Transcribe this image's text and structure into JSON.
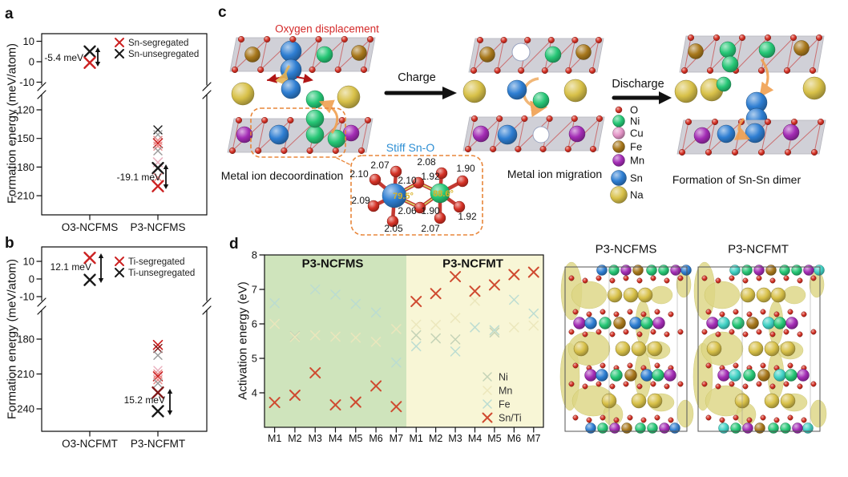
{
  "chart_data": [
    {
      "type": "scatter",
      "panel_label": "a",
      "ylabel": "Formation energy (meV/atom)",
      "categories": [
        "O3-NCFMS",
        "P3-NCFMS"
      ],
      "yticks_top": [
        "10",
        "0",
        "-10"
      ],
      "yticks_bottom": [
        "-120",
        "-150",
        "-180",
        "-210"
      ],
      "axis_break": true,
      "legend": [
        {
          "label": "Sn-segregated",
          "color": "red"
        },
        {
          "label": "Sn-unsegregated",
          "color": "black"
        }
      ],
      "annotations": [
        {
          "text": "-5.4 meV"
        },
        {
          "text": "-19.1 meV"
        }
      ],
      "points": [
        {
          "cat": 0,
          "v": 5,
          "c": "black",
          "s": 13,
          "w": 2.4
        },
        {
          "cat": 0,
          "v": -0.5,
          "c": "red",
          "s": 13,
          "w": 2.4
        },
        {
          "cat": 1,
          "v": -141,
          "c": "black",
          "s": 10,
          "w": 1.4
        },
        {
          "cat": 1,
          "v": -146,
          "c": "gray",
          "s": 10,
          "w": 1.4
        },
        {
          "cat": 1,
          "v": -152,
          "c": "lightred",
          "s": 10,
          "w": 1.4
        },
        {
          "cat": 1,
          "v": -155,
          "c": "red",
          "s": 11,
          "w": 1.6
        },
        {
          "cat": 1,
          "v": -158,
          "c": "lightred",
          "s": 10,
          "w": 1.4
        },
        {
          "cat": 1,
          "v": -163,
          "c": "gray",
          "s": 10,
          "w": 1.4
        },
        {
          "cat": 1,
          "v": -175,
          "c": "pink",
          "s": 11,
          "w": 1.6
        },
        {
          "cat": 1,
          "v": -181,
          "c": "black",
          "s": 13,
          "w": 2.4
        },
        {
          "cat": 1,
          "v": -191,
          "c": "lightred",
          "s": 10,
          "w": 1.4
        },
        {
          "cat": 1,
          "v": -200,
          "c": "red",
          "s": 13,
          "w": 2.4
        }
      ]
    },
    {
      "type": "scatter",
      "panel_label": "b",
      "ylabel": "Formation energy (meV/atom)",
      "categories": [
        "O3-NCFMT",
        "P3-NCFMT"
      ],
      "yticks_top": [
        "10",
        "0",
        "-10"
      ],
      "yticks_bottom": [
        "-180",
        "-210",
        "-240"
      ],
      "axis_break": true,
      "legend": [
        {
          "label": "Ti-segregated",
          "color": "red"
        },
        {
          "label": "Ti-unsegregated",
          "color": "black"
        }
      ],
      "annotations": [
        {
          "text": "12.1 meV"
        },
        {
          "text": "15.2 meV"
        }
      ],
      "points": [
        {
          "cat": 0,
          "v": 12,
          "c": "red",
          "s": 13,
          "w": 2.4
        },
        {
          "cat": 0,
          "v": -0.5,
          "c": "black",
          "s": 13,
          "w": 2.4
        },
        {
          "cat": 1,
          "v": -185,
          "c": "red",
          "s": 11,
          "w": 1.6
        },
        {
          "cat": 1,
          "v": -188,
          "c": "darkred",
          "s": 10,
          "w": 1.4
        },
        {
          "cat": 1,
          "v": -194,
          "c": "gray",
          "s": 10,
          "w": 1.4
        },
        {
          "cat": 1,
          "v": -207,
          "c": "pink",
          "s": 10,
          "w": 1.4
        },
        {
          "cat": 1,
          "v": -210,
          "c": "lightred",
          "s": 10,
          "w": 1.4
        },
        {
          "cat": 1,
          "v": -212,
          "c": "red",
          "s": 11,
          "w": 1.6
        },
        {
          "cat": 1,
          "v": -215,
          "c": "lightred",
          "s": 10,
          "w": 1.4
        },
        {
          "cat": 1,
          "v": -218,
          "c": "gray",
          "s": 10,
          "w": 1.4
        },
        {
          "cat": 1,
          "v": -226,
          "c": "darkred",
          "s": 13,
          "w": 2.4
        },
        {
          "cat": 1,
          "v": -242,
          "c": "black",
          "s": 13,
          "w": 2.4
        }
      ]
    },
    {
      "type": "scatter",
      "panel_label": "d",
      "ylabel": "Activation energy (eV)",
      "ylim": [
        3,
        8
      ],
      "yticks": [
        "4",
        "5",
        "6",
        "7",
        "8"
      ],
      "groups": [
        {
          "label": "P3-NCFMS",
          "bg": "#cfe4bc"
        },
        {
          "label": "P3-NCFMT",
          "bg": "#f8f6d6"
        }
      ],
      "categories": [
        "M1",
        "M2",
        "M3",
        "M4",
        "M5",
        "M6",
        "M7"
      ],
      "series": [
        {
          "name": "Ni",
          "color": "#c3d2b6",
          "ncfms": [
            null,
            5.65,
            null,
            null,
            null,
            null,
            null
          ],
          "ncfmt": [
            5.67,
            5.58,
            5.55,
            null,
            5.75,
            null,
            null
          ]
        },
        {
          "name": "Mn",
          "color": "#ece7bc",
          "ncfms": [
            6.0,
            5.62,
            5.67,
            5.63,
            5.6,
            5.48,
            5.85
          ],
          "ncfmt": [
            5.98,
            5.97,
            6.17,
            6.67,
            5.8,
            5.9,
            5.95
          ]
        },
        {
          "name": "Fe",
          "color": "#badcd2",
          "ncfms": [
            6.6,
            null,
            7.0,
            6.85,
            6.58,
            6.33,
            4.88
          ],
          "ncfmt": [
            5.35,
            null,
            5.2,
            5.9,
            5.82,
            6.7,
            6.3
          ]
        },
        {
          "name": "Sn/Ti",
          "color": "#cf4a30",
          "ncfms": [
            3.72,
            3.93,
            4.58,
            3.65,
            3.73,
            4.2,
            3.6
          ],
          "ncfmt": [
            6.65,
            6.88,
            7.37,
            6.95,
            7.13,
            7.43,
            7.5
          ]
        }
      ]
    }
  ],
  "panel_c": {
    "panel_label": "c",
    "captions": {
      "oxygen_displacement": "Oxygen displacement",
      "charge": "Charge",
      "discharge": "Discharge",
      "decoordination": "Metal ion decoordination",
      "stiff_sno": "Stiff Sn-O",
      "migration": "Metal ion migration",
      "dimer": "Formation of Sn-Sn dimer"
    },
    "legend": [
      {
        "label": "O",
        "key": "o"
      },
      {
        "label": "Ni",
        "key": "ni"
      },
      {
        "label": "Cu",
        "key": "cu"
      },
      {
        "label": "Fe",
        "key": "fe"
      },
      {
        "label": "Mn",
        "key": "mn"
      },
      {
        "label": "Sn",
        "key": "sn"
      },
      {
        "label": "Na",
        "key": "na"
      }
    ],
    "bond_lengths": [
      "2.10",
      "2.07",
      "2.08",
      "1.90",
      "2.10",
      "1.92",
      "2.09",
      "2.06",
      "1.90",
      "1.92",
      "2.05",
      "2.07"
    ],
    "bond_angles": [
      "79.5°",
      "88.6°"
    ]
  },
  "structures_right": {
    "titles": [
      "P3-NCFMS",
      "P3-NCFMT"
    ]
  },
  "palette": {
    "o": "#d53125",
    "ni": "#26c776",
    "cu": "#e393c6",
    "fe": "#a8781c",
    "mn": "#a32cb5",
    "sn": "#2e7ed2",
    "na": "#d8c149",
    "ti": "#3fd1c4",
    "vacancy": "#ffffff",
    "slab": "#c9c9cf",
    "isosurface": "#ddd685",
    "marker_red": "#cc2222",
    "marker_black": "#1a1a1a",
    "marker_gray": "#9a9a9a",
    "marker_pink": "#e9b0be",
    "marker_lightred": "#ea8585",
    "marker_darkred": "#7e1616",
    "accent_orange": "#f0a050",
    "caption_red": "#d42a2a",
    "caption_blue": "#2e8fd4",
    "angle_yellow": "#d9b226"
  }
}
